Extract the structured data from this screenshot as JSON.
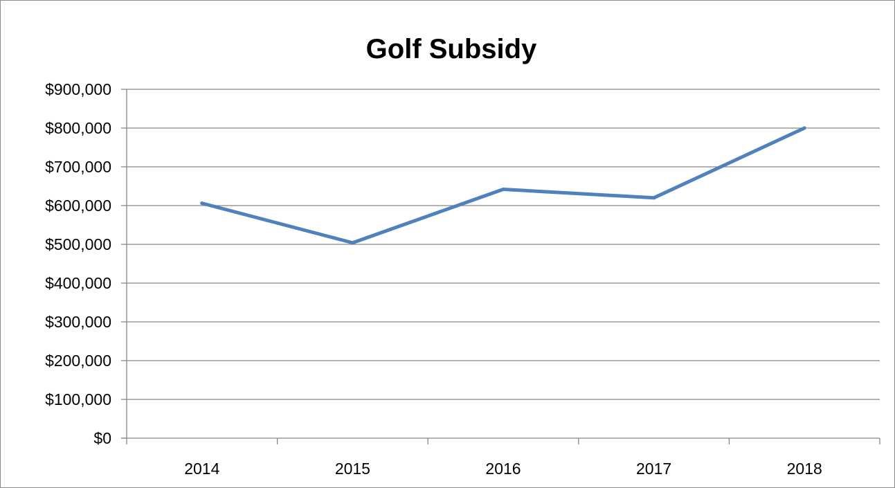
{
  "chart_data": {
    "type": "line",
    "title": "Golf Subsidy",
    "xlabel": "",
    "ylabel": "",
    "categories": [
      "2014",
      "2015",
      "2016",
      "2017",
      "2018"
    ],
    "series": [
      {
        "values": [
          606000,
          504000,
          642000,
          620000,
          800000
        ],
        "color": "#4f81bd"
      }
    ],
    "ylim": [
      0,
      900000
    ],
    "y_ticks": [
      0,
      100000,
      200000,
      300000,
      400000,
      500000,
      600000,
      700000,
      800000,
      900000
    ],
    "y_tick_labels": [
      "$0",
      "$100,000",
      "$200,000",
      "$300,000",
      "$400,000",
      "$500,000",
      "$600,000",
      "$700,000",
      "$800,000",
      "$900,000"
    ],
    "grid": "horizontal",
    "legend": "none",
    "colors": {
      "gridline": "#868686",
      "axis": "#868686",
      "frame": "#8c8c8c"
    }
  }
}
